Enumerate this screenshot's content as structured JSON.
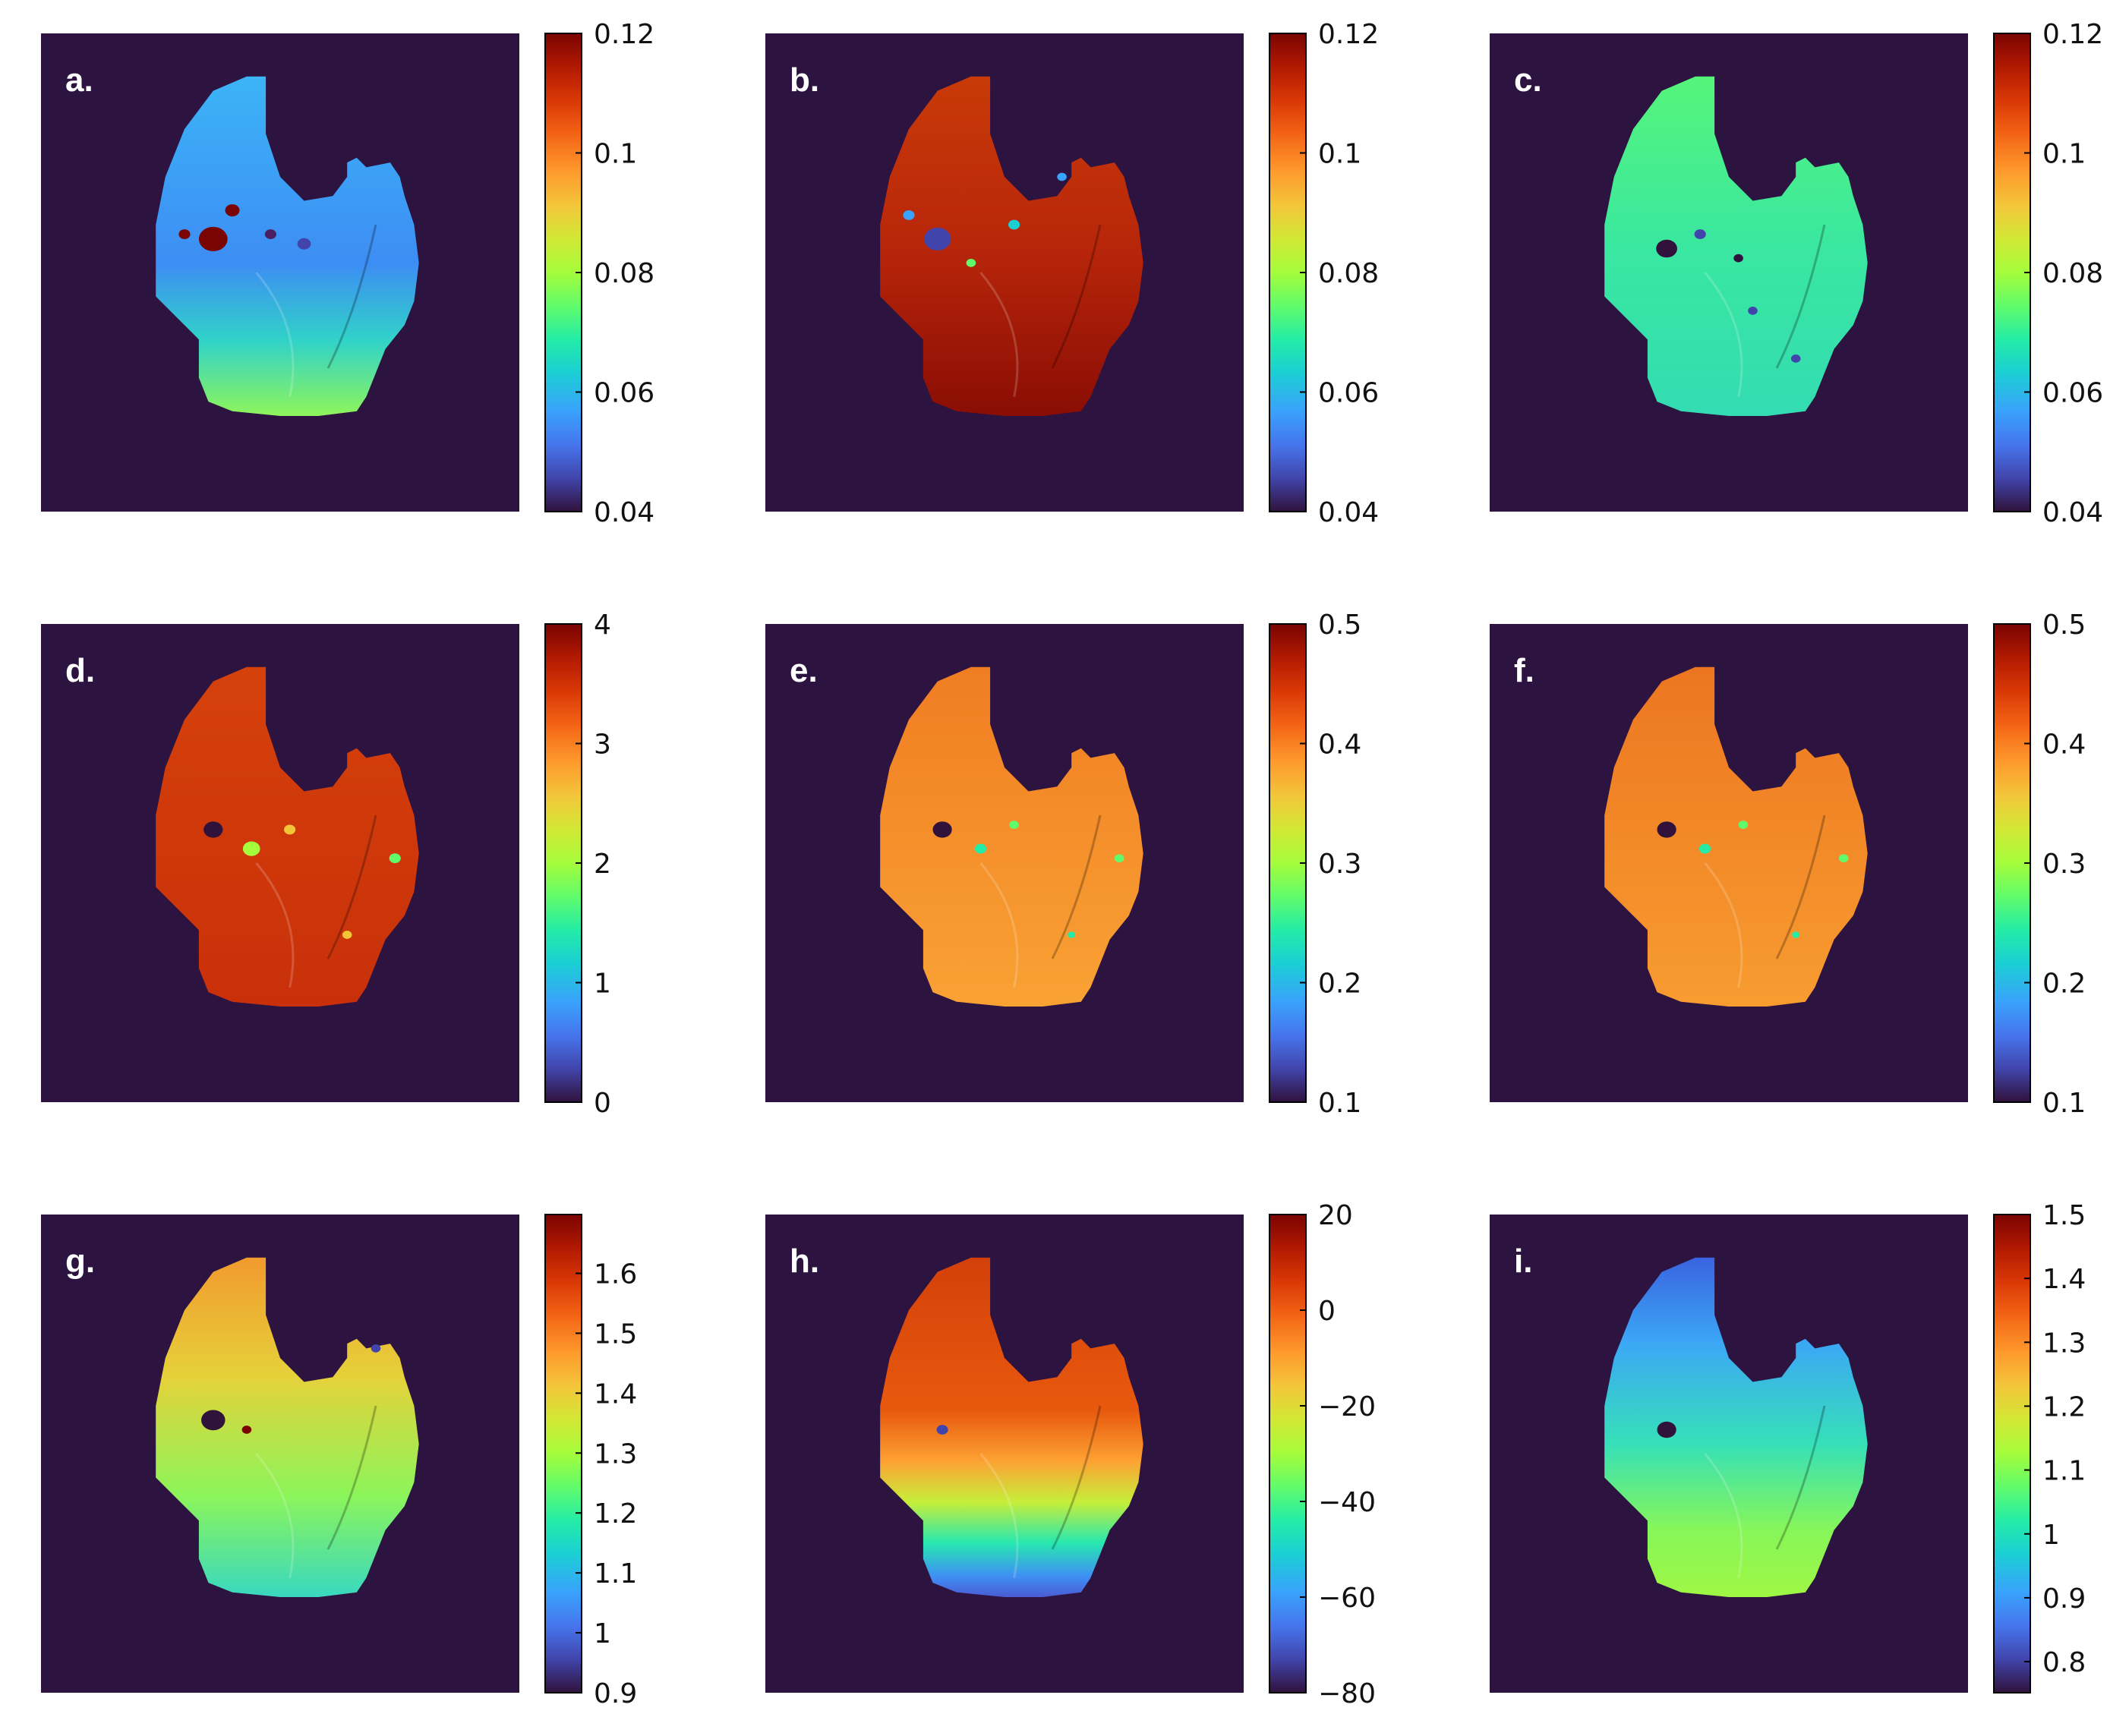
{
  "figure": {
    "background_color": "#2d1340",
    "colormap": "turbo",
    "panels": [
      {
        "id": "a",
        "label": "a.",
        "map_style": "a",
        "colorbar": {
          "ticks": [
            "0.12",
            "0.1",
            "0.08",
            "0.06",
            "0.04"
          ]
        }
      },
      {
        "id": "b",
        "label": "b.",
        "map_style": "b",
        "colorbar": {
          "ticks": [
            "0.12",
            "0.1",
            "0.08",
            "0.06",
            "0.04"
          ]
        }
      },
      {
        "id": "c",
        "label": "c.",
        "map_style": "c",
        "colorbar": {
          "ticks": [
            "0.12",
            "0.1",
            "0.08",
            "0.06",
            "0.04"
          ]
        }
      },
      {
        "id": "d",
        "label": "d.",
        "map_style": "d",
        "colorbar": {
          "ticks": [
            "4",
            "3",
            "2",
            "1",
            "0"
          ]
        }
      },
      {
        "id": "e",
        "label": "e.",
        "map_style": "e",
        "colorbar": {
          "ticks": [
            "0.5",
            "0.4",
            "0.3",
            "0.2",
            "0.1"
          ]
        }
      },
      {
        "id": "f",
        "label": "f.",
        "map_style": "f",
        "colorbar": {
          "ticks": [
            "0.5",
            "0.4",
            "0.3",
            "0.2",
            "0.1"
          ]
        }
      },
      {
        "id": "g",
        "label": "g.",
        "map_style": "g",
        "colorbar": {
          "ticks": [
            "1.6",
            "1.5",
            "1.4",
            "1.3",
            "1.2",
            "1.1",
            "1",
            "0.9"
          ]
        }
      },
      {
        "id": "h",
        "label": "h.",
        "map_style": "h",
        "colorbar": {
          "ticks": [
            "20",
            "0",
            "−20",
            "−40",
            "−60",
            "−80"
          ]
        }
      },
      {
        "id": "i",
        "label": "i.",
        "map_style": "i",
        "colorbar": {
          "ticks": [
            "1.5",
            "1.4",
            "1.3",
            "1.2",
            "1.1",
            "1",
            "0.9",
            "0.8"
          ]
        }
      }
    ]
  }
}
